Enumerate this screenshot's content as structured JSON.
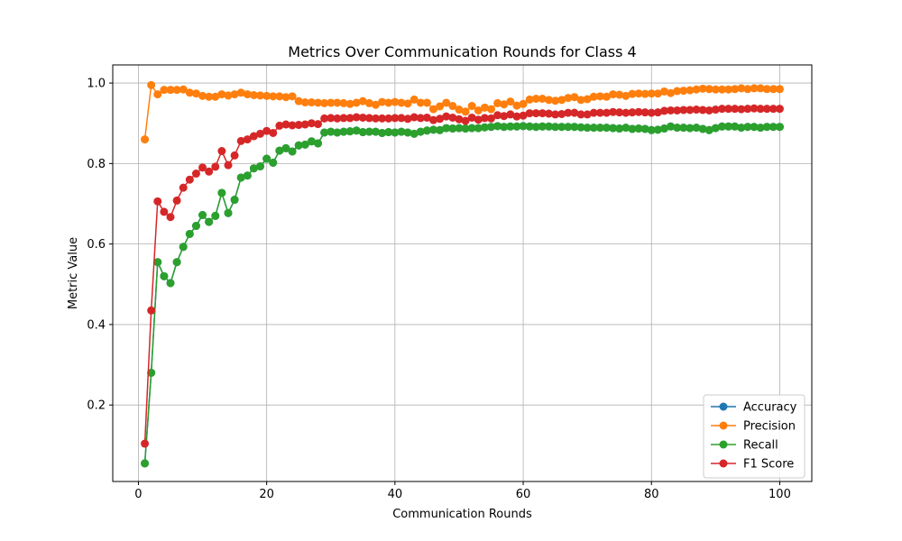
{
  "chart_data": {
    "type": "line",
    "title": "Metrics Over Communication Rounds for Class 4",
    "xlabel": "Communication Rounds",
    "ylabel": "Metric Value",
    "xlim": [
      -4,
      105
    ],
    "ylim": [
      0.01,
      1.045
    ],
    "xticks": [
      0,
      20,
      40,
      60,
      80,
      100
    ],
    "yticks": [
      0.2,
      0.4,
      0.6,
      0.8,
      1.0
    ],
    "xtick_labels": [
      "0",
      "20",
      "40",
      "60",
      "80",
      "100"
    ],
    "ytick_labels": [
      "0.2",
      "0.4",
      "0.6",
      "0.8",
      "1.0"
    ],
    "grid": true,
    "legend_position": "lower-right",
    "x": [
      1,
      2,
      3,
      4,
      5,
      6,
      7,
      8,
      9,
      10,
      11,
      12,
      13,
      14,
      15,
      16,
      17,
      18,
      19,
      20,
      21,
      22,
      23,
      24,
      25,
      26,
      27,
      28,
      29,
      30,
      31,
      32,
      33,
      34,
      35,
      36,
      37,
      38,
      39,
      40,
      41,
      42,
      43,
      44,
      45,
      46,
      47,
      48,
      49,
      50,
      51,
      52,
      53,
      54,
      55,
      56,
      57,
      58,
      59,
      60,
      61,
      62,
      63,
      64,
      65,
      66,
      67,
      68,
      69,
      70,
      71,
      72,
      73,
      74,
      75,
      76,
      77,
      78,
      79,
      80,
      81,
      82,
      83,
      84,
      85,
      86,
      87,
      88,
      89,
      90,
      91,
      92,
      93,
      94,
      95,
      96,
      97,
      98,
      99,
      100
    ],
    "series": [
      {
        "name": "Accuracy",
        "color": "#1f77b4",
        "values": [
          0.055,
          0.28,
          0.555,
          0.52,
          0.503,
          0.555,
          0.593,
          0.625,
          0.645,
          0.672,
          0.655,
          0.67,
          0.727,
          0.677,
          0.71,
          0.765,
          0.77,
          0.788,
          0.793,
          0.812,
          0.802,
          0.832,
          0.838,
          0.83,
          0.845,
          0.847,
          0.855,
          0.85,
          0.877,
          0.879,
          0.877,
          0.879,
          0.88,
          0.882,
          0.878,
          0.879,
          0.879,
          0.876,
          0.878,
          0.877,
          0.879,
          0.877,
          0.874,
          0.879,
          0.882,
          0.884,
          0.883,
          0.888,
          0.887,
          0.888,
          0.887,
          0.888,
          0.888,
          0.89,
          0.891,
          0.893,
          0.891,
          0.892,
          0.892,
          0.893,
          0.892,
          0.891,
          0.892,
          0.892,
          0.891,
          0.891,
          0.891,
          0.891,
          0.89,
          0.889,
          0.889,
          0.889,
          0.889,
          0.888,
          0.887,
          0.889,
          0.886,
          0.887,
          0.886,
          0.883,
          0.884,
          0.887,
          0.892,
          0.889,
          0.889,
          0.888,
          0.889,
          0.886,
          0.883,
          0.888,
          0.892,
          0.892,
          0.892,
          0.889,
          0.891,
          0.891,
          0.889,
          0.891,
          0.891,
          0.891
        ]
      },
      {
        "name": "Precision",
        "color": "#ff7f0e",
        "values": [
          0.86,
          0.995,
          0.972,
          0.983,
          0.983,
          0.983,
          0.984,
          0.976,
          0.974,
          0.968,
          0.966,
          0.966,
          0.972,
          0.969,
          0.972,
          0.976,
          0.972,
          0.97,
          0.969,
          0.968,
          0.967,
          0.967,
          0.965,
          0.967,
          0.955,
          0.952,
          0.952,
          0.951,
          0.95,
          0.951,
          0.951,
          0.95,
          0.948,
          0.951,
          0.955,
          0.95,
          0.946,
          0.953,
          0.951,
          0.953,
          0.951,
          0.949,
          0.959,
          0.951,
          0.951,
          0.935,
          0.942,
          0.951,
          0.943,
          0.934,
          0.929,
          0.943,
          0.932,
          0.939,
          0.935,
          0.95,
          0.947,
          0.954,
          0.944,
          0.948,
          0.959,
          0.961,
          0.961,
          0.958,
          0.956,
          0.958,
          0.963,
          0.965,
          0.958,
          0.96,
          0.966,
          0.967,
          0.966,
          0.972,
          0.971,
          0.968,
          0.973,
          0.974,
          0.973,
          0.974,
          0.974,
          0.979,
          0.975,
          0.98,
          0.981,
          0.982,
          0.984,
          0.986,
          0.985,
          0.984,
          0.984,
          0.984,
          0.985,
          0.987,
          0.985,
          0.987,
          0.987,
          0.985,
          0.985,
          0.985
        ]
      },
      {
        "name": "Recall",
        "color": "#2ca02c",
        "values": [
          0.055,
          0.28,
          0.555,
          0.52,
          0.503,
          0.555,
          0.593,
          0.625,
          0.645,
          0.672,
          0.655,
          0.67,
          0.727,
          0.677,
          0.71,
          0.765,
          0.77,
          0.788,
          0.793,
          0.812,
          0.802,
          0.832,
          0.838,
          0.83,
          0.845,
          0.847,
          0.855,
          0.85,
          0.877,
          0.879,
          0.877,
          0.879,
          0.88,
          0.882,
          0.878,
          0.879,
          0.879,
          0.876,
          0.878,
          0.877,
          0.879,
          0.877,
          0.874,
          0.879,
          0.882,
          0.884,
          0.883,
          0.888,
          0.887,
          0.888,
          0.887,
          0.888,
          0.888,
          0.89,
          0.891,
          0.893,
          0.891,
          0.892,
          0.892,
          0.893,
          0.892,
          0.891,
          0.892,
          0.892,
          0.891,
          0.891,
          0.891,
          0.891,
          0.89,
          0.889,
          0.889,
          0.889,
          0.889,
          0.888,
          0.887,
          0.889,
          0.886,
          0.887,
          0.886,
          0.883,
          0.884,
          0.887,
          0.892,
          0.889,
          0.889,
          0.888,
          0.889,
          0.886,
          0.883,
          0.888,
          0.892,
          0.892,
          0.892,
          0.889,
          0.891,
          0.891,
          0.889,
          0.891,
          0.891,
          0.891
        ]
      },
      {
        "name": "F1 Score",
        "color": "#d62728",
        "values": [
          0.104,
          0.435,
          0.706,
          0.68,
          0.667,
          0.708,
          0.74,
          0.76,
          0.775,
          0.79,
          0.78,
          0.792,
          0.831,
          0.796,
          0.82,
          0.856,
          0.86,
          0.868,
          0.874,
          0.881,
          0.876,
          0.894,
          0.897,
          0.895,
          0.896,
          0.897,
          0.9,
          0.898,
          0.912,
          0.913,
          0.912,
          0.913,
          0.913,
          0.915,
          0.914,
          0.913,
          0.912,
          0.912,
          0.912,
          0.913,
          0.913,
          0.911,
          0.915,
          0.913,
          0.914,
          0.908,
          0.911,
          0.917,
          0.914,
          0.91,
          0.906,
          0.914,
          0.909,
          0.913,
          0.912,
          0.92,
          0.918,
          0.922,
          0.917,
          0.919,
          0.925,
          0.925,
          0.925,
          0.924,
          0.922,
          0.923,
          0.926,
          0.926,
          0.922,
          0.922,
          0.926,
          0.926,
          0.926,
          0.928,
          0.927,
          0.926,
          0.927,
          0.928,
          0.927,
          0.926,
          0.927,
          0.931,
          0.932,
          0.932,
          0.933,
          0.933,
          0.934,
          0.933,
          0.932,
          0.934,
          0.936,
          0.936,
          0.936,
          0.935,
          0.936,
          0.937,
          0.936,
          0.936,
          0.936,
          0.936
        ]
      }
    ]
  }
}
